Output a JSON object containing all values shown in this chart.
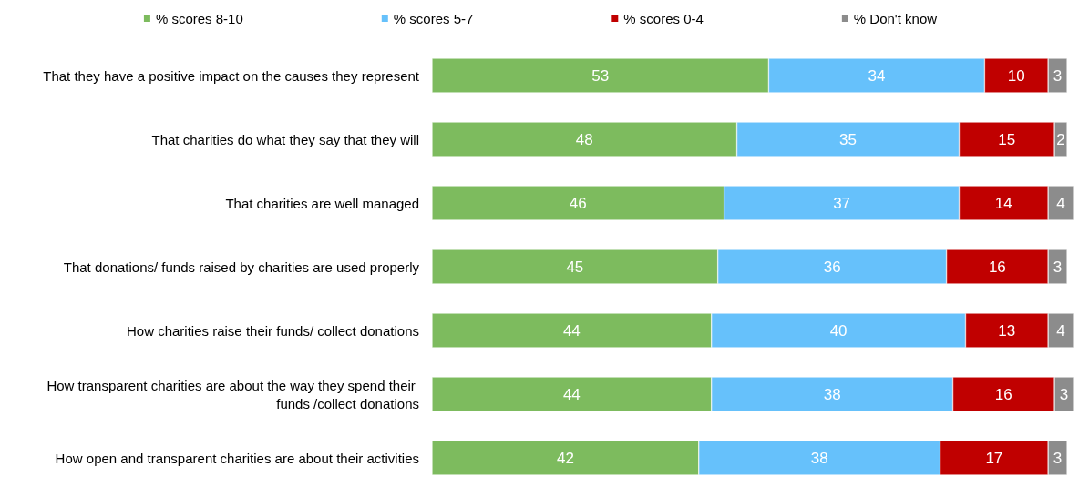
{
  "chart_data": {
    "type": "bar",
    "orientation": "horizontal",
    "stacked": true,
    "data_labels": true,
    "legend": "top",
    "tick_labels": "y",
    "xlim": [
      0,
      101
    ],
    "categories": [
      "That they have a positive impact on the causes they represent",
      "That charities do what they say that they will",
      "That charities are well managed",
      "That donations/ funds raised by charities are used properly",
      "How charities raise their funds/ collect donations",
      "How transparent charities are about the way they spend their funds /collect donations",
      "How open and transparent charities are about their activities"
    ],
    "series": [
      {
        "name": "% scores 8-10",
        "color": "#7dbb5e",
        "values": [
          53,
          48,
          46,
          45,
          44,
          44,
          42
        ]
      },
      {
        "name": "% scores 5-7",
        "color": "#66c1fb",
        "values": [
          34,
          35,
          37,
          36,
          40,
          38,
          38
        ]
      },
      {
        "name": "% scores 0-4",
        "color": "#c00000",
        "values": [
          10,
          15,
          14,
          16,
          13,
          16,
          17
        ]
      },
      {
        "name": "% Don't know",
        "color": "#8c8c8c",
        "values": [
          3,
          2,
          4,
          3,
          4,
          3,
          3
        ]
      }
    ]
  }
}
